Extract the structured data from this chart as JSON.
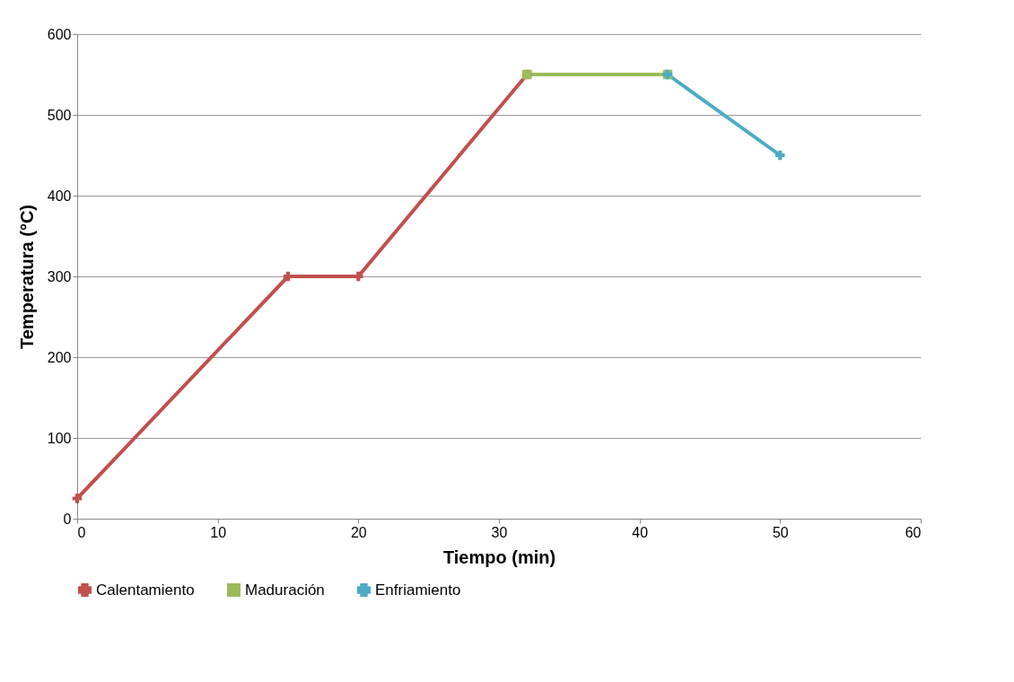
{
  "chart_data": {
    "type": "line",
    "xlabel": "Tiempo (min)",
    "ylabel": "Temperatura (°C)",
    "xlim": [
      0,
      60
    ],
    "xticks": [
      0,
      10,
      20,
      30,
      40,
      50,
      60
    ],
    "ylim": [
      0,
      600
    ],
    "yticks": [
      0,
      100,
      200,
      300,
      400,
      500,
      600
    ],
    "grid": "y",
    "legend": "bottom",
    "line_style": "solid",
    "series": [
      {
        "name": "Calentamiento",
        "color": "#c0504d",
        "marker": "cross",
        "x": [
          0,
          15,
          20,
          32
        ],
        "values": [
          25,
          300,
          300,
          550
        ]
      },
      {
        "name": "Maduración",
        "color": "#9bbb59",
        "marker": "square",
        "x": [
          32,
          42
        ],
        "values": [
          550,
          550
        ]
      },
      {
        "name": "Enfriamiento",
        "color": "#4bacc6",
        "marker": "cross",
        "x": [
          42,
          50
        ],
        "values": [
          550,
          450
        ]
      }
    ]
  }
}
